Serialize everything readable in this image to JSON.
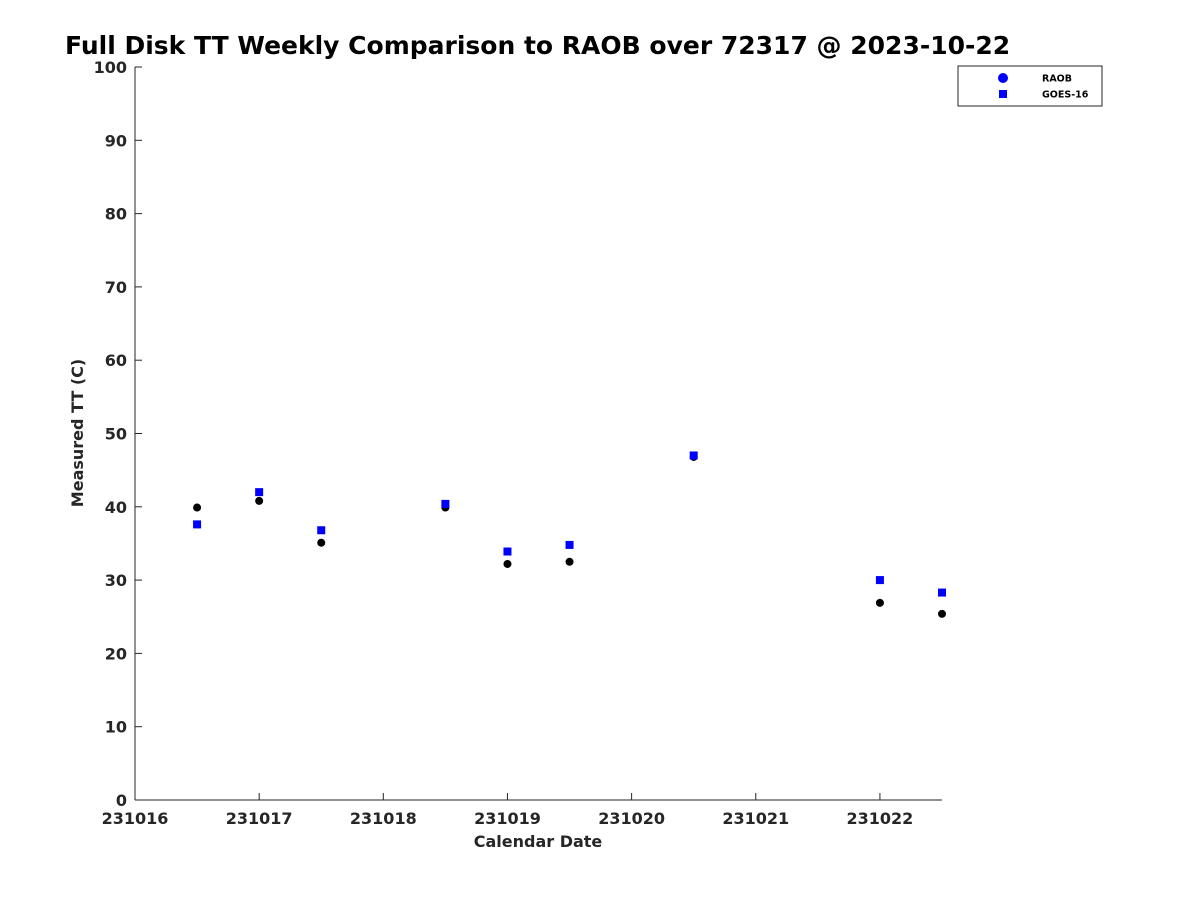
{
  "chart_data": {
    "type": "scatter",
    "title": "Full Disk TT Weekly Comparison to RAOB over 72317 @ 2023-10-22",
    "xlabel": "Calendar Date",
    "ylabel": "Measured TT (C)",
    "xlim": [
      231016,
      231022.5
    ],
    "ylim": [
      0,
      100
    ],
    "x_ticks": [
      "231016",
      "231017",
      "231018",
      "231019",
      "231020",
      "231021",
      "231022"
    ],
    "y_ticks": [
      "0",
      "10",
      "20",
      "30",
      "40",
      "50",
      "60",
      "70",
      "80",
      "90",
      "100"
    ],
    "grid": false,
    "legend_position": "top-right",
    "series": [
      {
        "name": "RAOB",
        "marker": "circle",
        "color": "#000000",
        "legend_color": "#0000ff",
        "points": [
          {
            "x": 231016.5,
            "y": 39.9
          },
          {
            "x": 231017.0,
            "y": 40.8
          },
          {
            "x": 231017.5,
            "y": 35.1
          },
          {
            "x": 231018.5,
            "y": 39.9
          },
          {
            "x": 231019.0,
            "y": 32.2
          },
          {
            "x": 231019.5,
            "y": 32.5
          },
          {
            "x": 231020.5,
            "y": 46.8
          },
          {
            "x": 231022.0,
            "y": 26.9
          },
          {
            "x": 231022.5,
            "y": 25.4
          }
        ]
      },
      {
        "name": "GOES-16",
        "marker": "square",
        "color": "#0000ff",
        "legend_color": "#0000ff",
        "points": [
          {
            "x": 231016.5,
            "y": 37.6
          },
          {
            "x": 231017.0,
            "y": 42.0
          },
          {
            "x": 231017.5,
            "y": 36.8
          },
          {
            "x": 231018.5,
            "y": 40.4
          },
          {
            "x": 231019.0,
            "y": 33.9
          },
          {
            "x": 231019.5,
            "y": 34.8
          },
          {
            "x": 231020.5,
            "y": 47.0
          },
          {
            "x": 231022.0,
            "y": 30.0
          },
          {
            "x": 231022.5,
            "y": 28.3
          }
        ]
      }
    ]
  }
}
